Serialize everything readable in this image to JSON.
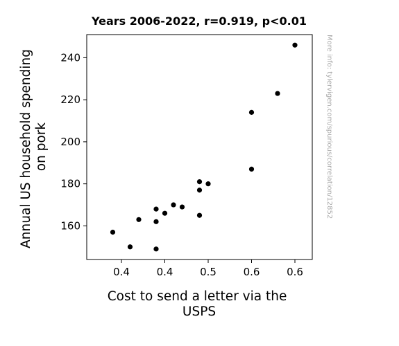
{
  "chart_data": {
    "type": "scatter",
    "title": "Years 2006-2022, r=0.919, p<0.01",
    "xlabel_lines": [
      "Cost to send a letter via the",
      "USPS"
    ],
    "ylabel_lines": [
      "Annual US household spending",
      "on pork"
    ],
    "xlim": [
      0.36,
      0.62
    ],
    "ylim": [
      144,
      251
    ],
    "x_ticks": [
      0.4,
      0.45,
      0.5,
      0.55,
      0.6
    ],
    "x_tick_labels": [
      "0.4",
      "0.4",
      "0.5",
      "0.6",
      "0.6"
    ],
    "y_ticks": [
      160,
      180,
      200,
      220,
      240
    ],
    "y_tick_labels": [
      "160",
      "180",
      "200",
      "220",
      "240"
    ],
    "points": [
      {
        "x": 0.39,
        "y": 157
      },
      {
        "x": 0.41,
        "y": 150
      },
      {
        "x": 0.42,
        "y": 163
      },
      {
        "x": 0.44,
        "y": 168
      },
      {
        "x": 0.44,
        "y": 162
      },
      {
        "x": 0.44,
        "y": 149
      },
      {
        "x": 0.45,
        "y": 166
      },
      {
        "x": 0.46,
        "y": 170
      },
      {
        "x": 0.47,
        "y": 169
      },
      {
        "x": 0.49,
        "y": 181
      },
      {
        "x": 0.49,
        "y": 177
      },
      {
        "x": 0.49,
        "y": 165
      },
      {
        "x": 0.5,
        "y": 180
      },
      {
        "x": 0.55,
        "y": 214
      },
      {
        "x": 0.55,
        "y": 187
      },
      {
        "x": 0.58,
        "y": 223
      },
      {
        "x": 0.6,
        "y": 246
      }
    ],
    "marker_color": "#000000",
    "grid": false,
    "legend": "none"
  },
  "watermark": "More info: tylervigen.com/spurious/correlation/12852"
}
